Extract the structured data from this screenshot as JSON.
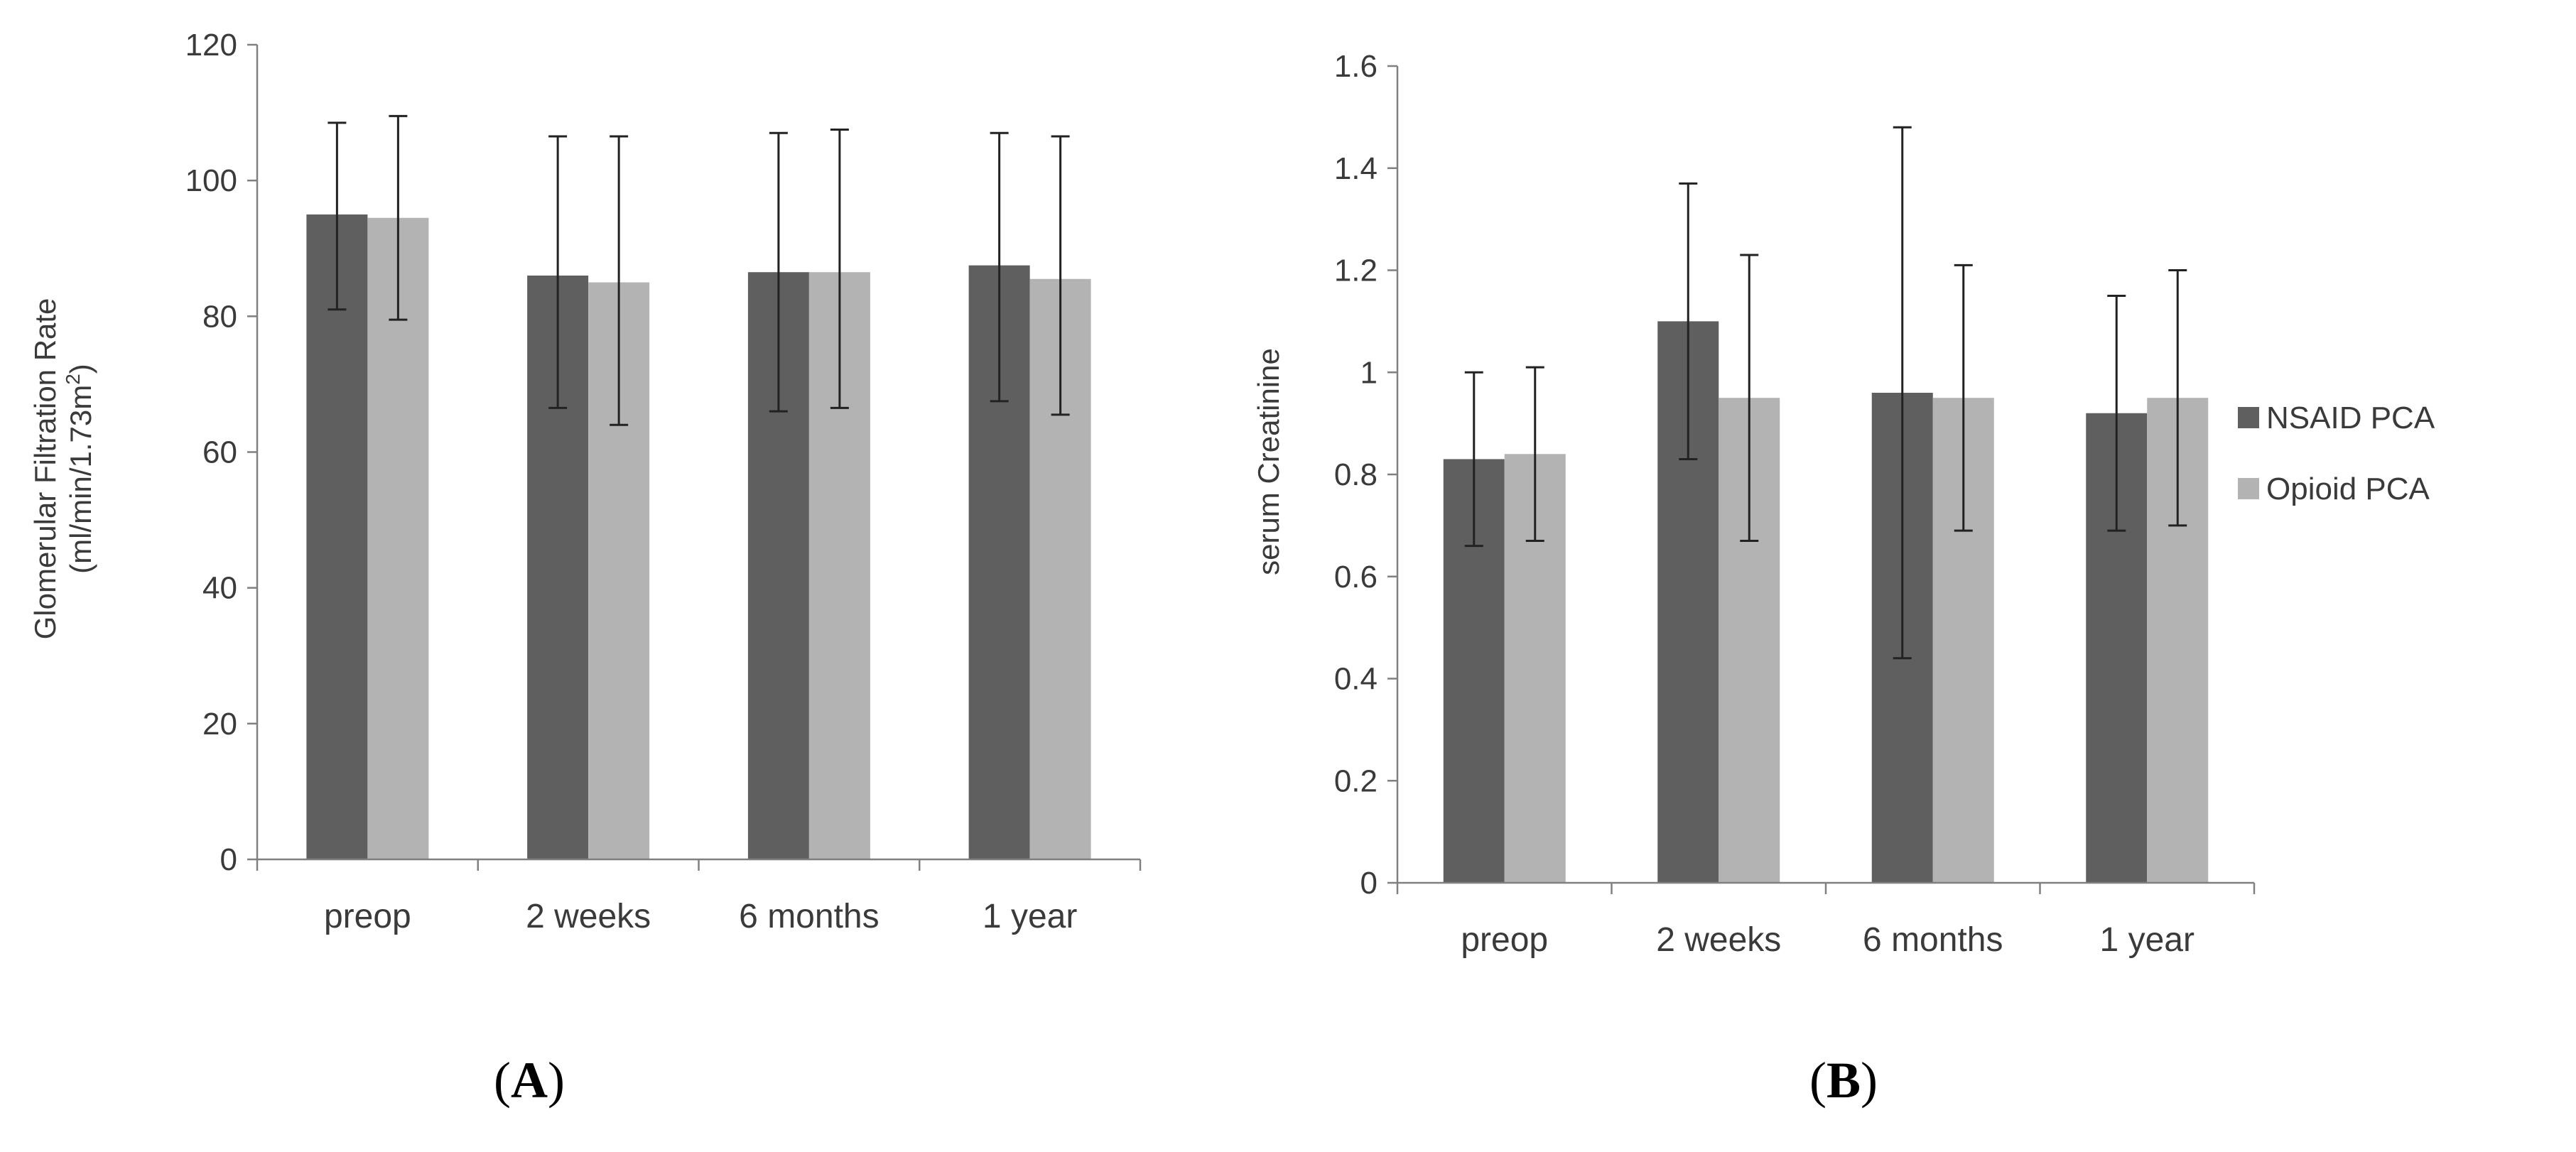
{
  "chart_data": [
    {
      "panel": "(A)",
      "type": "bar",
      "categories": [
        "preop",
        "2 weeks",
        "6 months",
        "1 year"
      ],
      "ylabel_line1": "Glomerular Filtration Rate",
      "ylabel_line2_pre": "(ml/min/1.73m",
      "ylabel_line2_sup": "2",
      "ylabel_line2_post": ")",
      "ylim": [
        0,
        120
      ],
      "yticks": [
        "0",
        "20",
        "40",
        "60",
        "80",
        "100",
        "120"
      ],
      "series": [
        {
          "name": "NSAID PCA",
          "values": [
            95,
            86,
            86.5,
            87.5
          ],
          "err_low": [
            81,
            66.5,
            66,
            67.5
          ],
          "err_high": [
            108.5,
            106.5,
            107,
            107
          ]
        },
        {
          "name": "Opioid PCA",
          "values": [
            94.5,
            85,
            86.5,
            85.5
          ],
          "err_low": [
            79.5,
            64,
            66.5,
            65.5
          ],
          "err_high": [
            109.5,
            106.5,
            107.5,
            106.5
          ]
        }
      ]
    },
    {
      "panel": "(B)",
      "type": "bar",
      "categories": [
        "preop",
        "2 weeks",
        "6 months",
        "1 year"
      ],
      "ylabel": "serum Creatinine",
      "ylim": [
        0,
        1.6
      ],
      "yticks": [
        "0",
        "0.2",
        "0.4",
        "0.6",
        "0.8",
        "1",
        "1.2",
        "1.4",
        "1.6"
      ],
      "series": [
        {
          "name": "NSAID PCA",
          "values": [
            0.83,
            1.1,
            0.96,
            0.92
          ],
          "err_low": [
            0.66,
            0.83,
            0.44,
            0.69
          ],
          "err_high": [
            1.0,
            1.37,
            1.48,
            1.15
          ]
        },
        {
          "name": "Opioid PCA",
          "values": [
            0.84,
            0.95,
            0.95,
            0.95
          ],
          "err_low": [
            0.67,
            0.67,
            0.69,
            0.7
          ],
          "err_high": [
            1.01,
            1.23,
            1.21,
            1.2
          ]
        }
      ]
    }
  ],
  "legend": {
    "placement": "right",
    "items": [
      {
        "label": "NSAID PCA",
        "color": "#5f5f5f"
      },
      {
        "label": "Opioid PCA",
        "color": "#b3b3b3"
      }
    ]
  },
  "panel_labels": {
    "a_open": "(",
    "a_letter": "A",
    "a_close": ")",
    "b_open": "(",
    "b_letter": "B",
    "b_close": ")"
  },
  "colors": {
    "nsaid": "#5f5f5f",
    "opioid": "#b3b3b3",
    "axis": "#808080",
    "error_bar": "#222222"
  }
}
